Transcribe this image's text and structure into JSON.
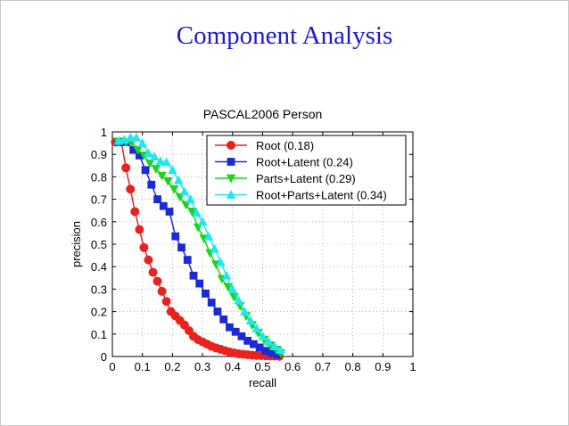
{
  "slide": {
    "title": "Component Analysis"
  },
  "chart_data": {
    "type": "line",
    "title": "PASCAL2006 Person",
    "xlabel": "recall",
    "ylabel": "precision",
    "xlim": [
      0,
      1
    ],
    "ylim": [
      0,
      1
    ],
    "xticks": [
      "0",
      "0.1",
      "0.2",
      "0.3",
      "0.4",
      "0.5",
      "0.6",
      "0.7",
      "0.8",
      "0.9",
      "1"
    ],
    "yticks": [
      "0",
      "0.1",
      "0.2",
      "0.3",
      "0.4",
      "0.5",
      "0.6",
      "0.7",
      "0.8",
      "0.9",
      "1"
    ],
    "grid": true,
    "legend_position": "top-right",
    "series": [
      {
        "name": "Root (0.18)",
        "color": "#e8231e",
        "marker": "circle",
        "x": [
          0.01,
          0.03,
          0.045,
          0.06,
          0.075,
          0.09,
          0.105,
          0.12,
          0.135,
          0.15,
          0.165,
          0.18,
          0.195,
          0.21,
          0.225,
          0.24,
          0.255,
          0.27,
          0.285,
          0.3,
          0.315,
          0.33,
          0.345,
          0.36,
          0.375,
          0.39,
          0.405,
          0.42,
          0.435,
          0.45,
          0.465,
          0.48,
          0.495,
          0.51,
          0.525,
          0.54,
          0.555
        ],
        "y": [
          0.955,
          0.955,
          0.84,
          0.745,
          0.645,
          0.565,
          0.485,
          0.43,
          0.375,
          0.335,
          0.29,
          0.245,
          0.2,
          0.18,
          0.16,
          0.14,
          0.115,
          0.09,
          0.075,
          0.065,
          0.055,
          0.045,
          0.038,
          0.032,
          0.026,
          0.02,
          0.016,
          0.012,
          0.01,
          0.008,
          0.006,
          0.005,
          0.004,
          0.003,
          0.002,
          0.002,
          0.001
        ]
      },
      {
        "name": "Root+Latent (0.24)",
        "color": "#1a2bd6",
        "marker": "square",
        "x": [
          0.02,
          0.045,
          0.07,
          0.09,
          0.11,
          0.13,
          0.15,
          0.17,
          0.19,
          0.21,
          0.23,
          0.25,
          0.27,
          0.29,
          0.31,
          0.33,
          0.35,
          0.37,
          0.39,
          0.41,
          0.43,
          0.45,
          0.47,
          0.49,
          0.51,
          0.53,
          0.55
        ],
        "y": [
          0.955,
          0.955,
          0.92,
          0.895,
          0.83,
          0.765,
          0.7,
          0.67,
          0.645,
          0.535,
          0.485,
          0.43,
          0.36,
          0.325,
          0.28,
          0.24,
          0.2,
          0.165,
          0.13,
          0.11,
          0.09,
          0.07,
          0.055,
          0.04,
          0.025,
          0.015,
          0.008
        ]
      },
      {
        "name": "Parts+Latent (0.29)",
        "color": "#1bd41b",
        "marker": "triangle-down",
        "x": [
          0.02,
          0.045,
          0.065,
          0.085,
          0.105,
          0.125,
          0.145,
          0.165,
          0.185,
          0.205,
          0.225,
          0.245,
          0.265,
          0.285,
          0.305,
          0.325,
          0.345,
          0.365,
          0.385,
          0.405,
          0.425,
          0.445,
          0.465,
          0.485,
          0.505,
          0.525,
          0.545,
          0.56
        ],
        "y": [
          0.955,
          0.955,
          0.955,
          0.92,
          0.895,
          0.86,
          0.835,
          0.805,
          0.78,
          0.745,
          0.71,
          0.675,
          0.645,
          0.575,
          0.525,
          0.46,
          0.41,
          0.345,
          0.31,
          0.265,
          0.225,
          0.18,
          0.14,
          0.105,
          0.075,
          0.05,
          0.03,
          0.015
        ]
      },
      {
        "name": "Root+Parts+Latent (0.34)",
        "color": "#1ee8ee",
        "marker": "triangle-up",
        "x": [
          0.02,
          0.04,
          0.06,
          0.08,
          0.1,
          0.12,
          0.14,
          0.16,
          0.18,
          0.2,
          0.22,
          0.24,
          0.26,
          0.28,
          0.3,
          0.32,
          0.34,
          0.36,
          0.38,
          0.4,
          0.42,
          0.44,
          0.46,
          0.48,
          0.5,
          0.52,
          0.54,
          0.56
        ],
        "y": [
          0.96,
          0.965,
          0.975,
          0.975,
          0.95,
          0.905,
          0.89,
          0.87,
          0.865,
          0.83,
          0.785,
          0.735,
          0.7,
          0.64,
          0.6,
          0.535,
          0.48,
          0.42,
          0.36,
          0.3,
          0.25,
          0.2,
          0.16,
          0.125,
          0.09,
          0.065,
          0.045,
          0.03
        ]
      }
    ]
  }
}
